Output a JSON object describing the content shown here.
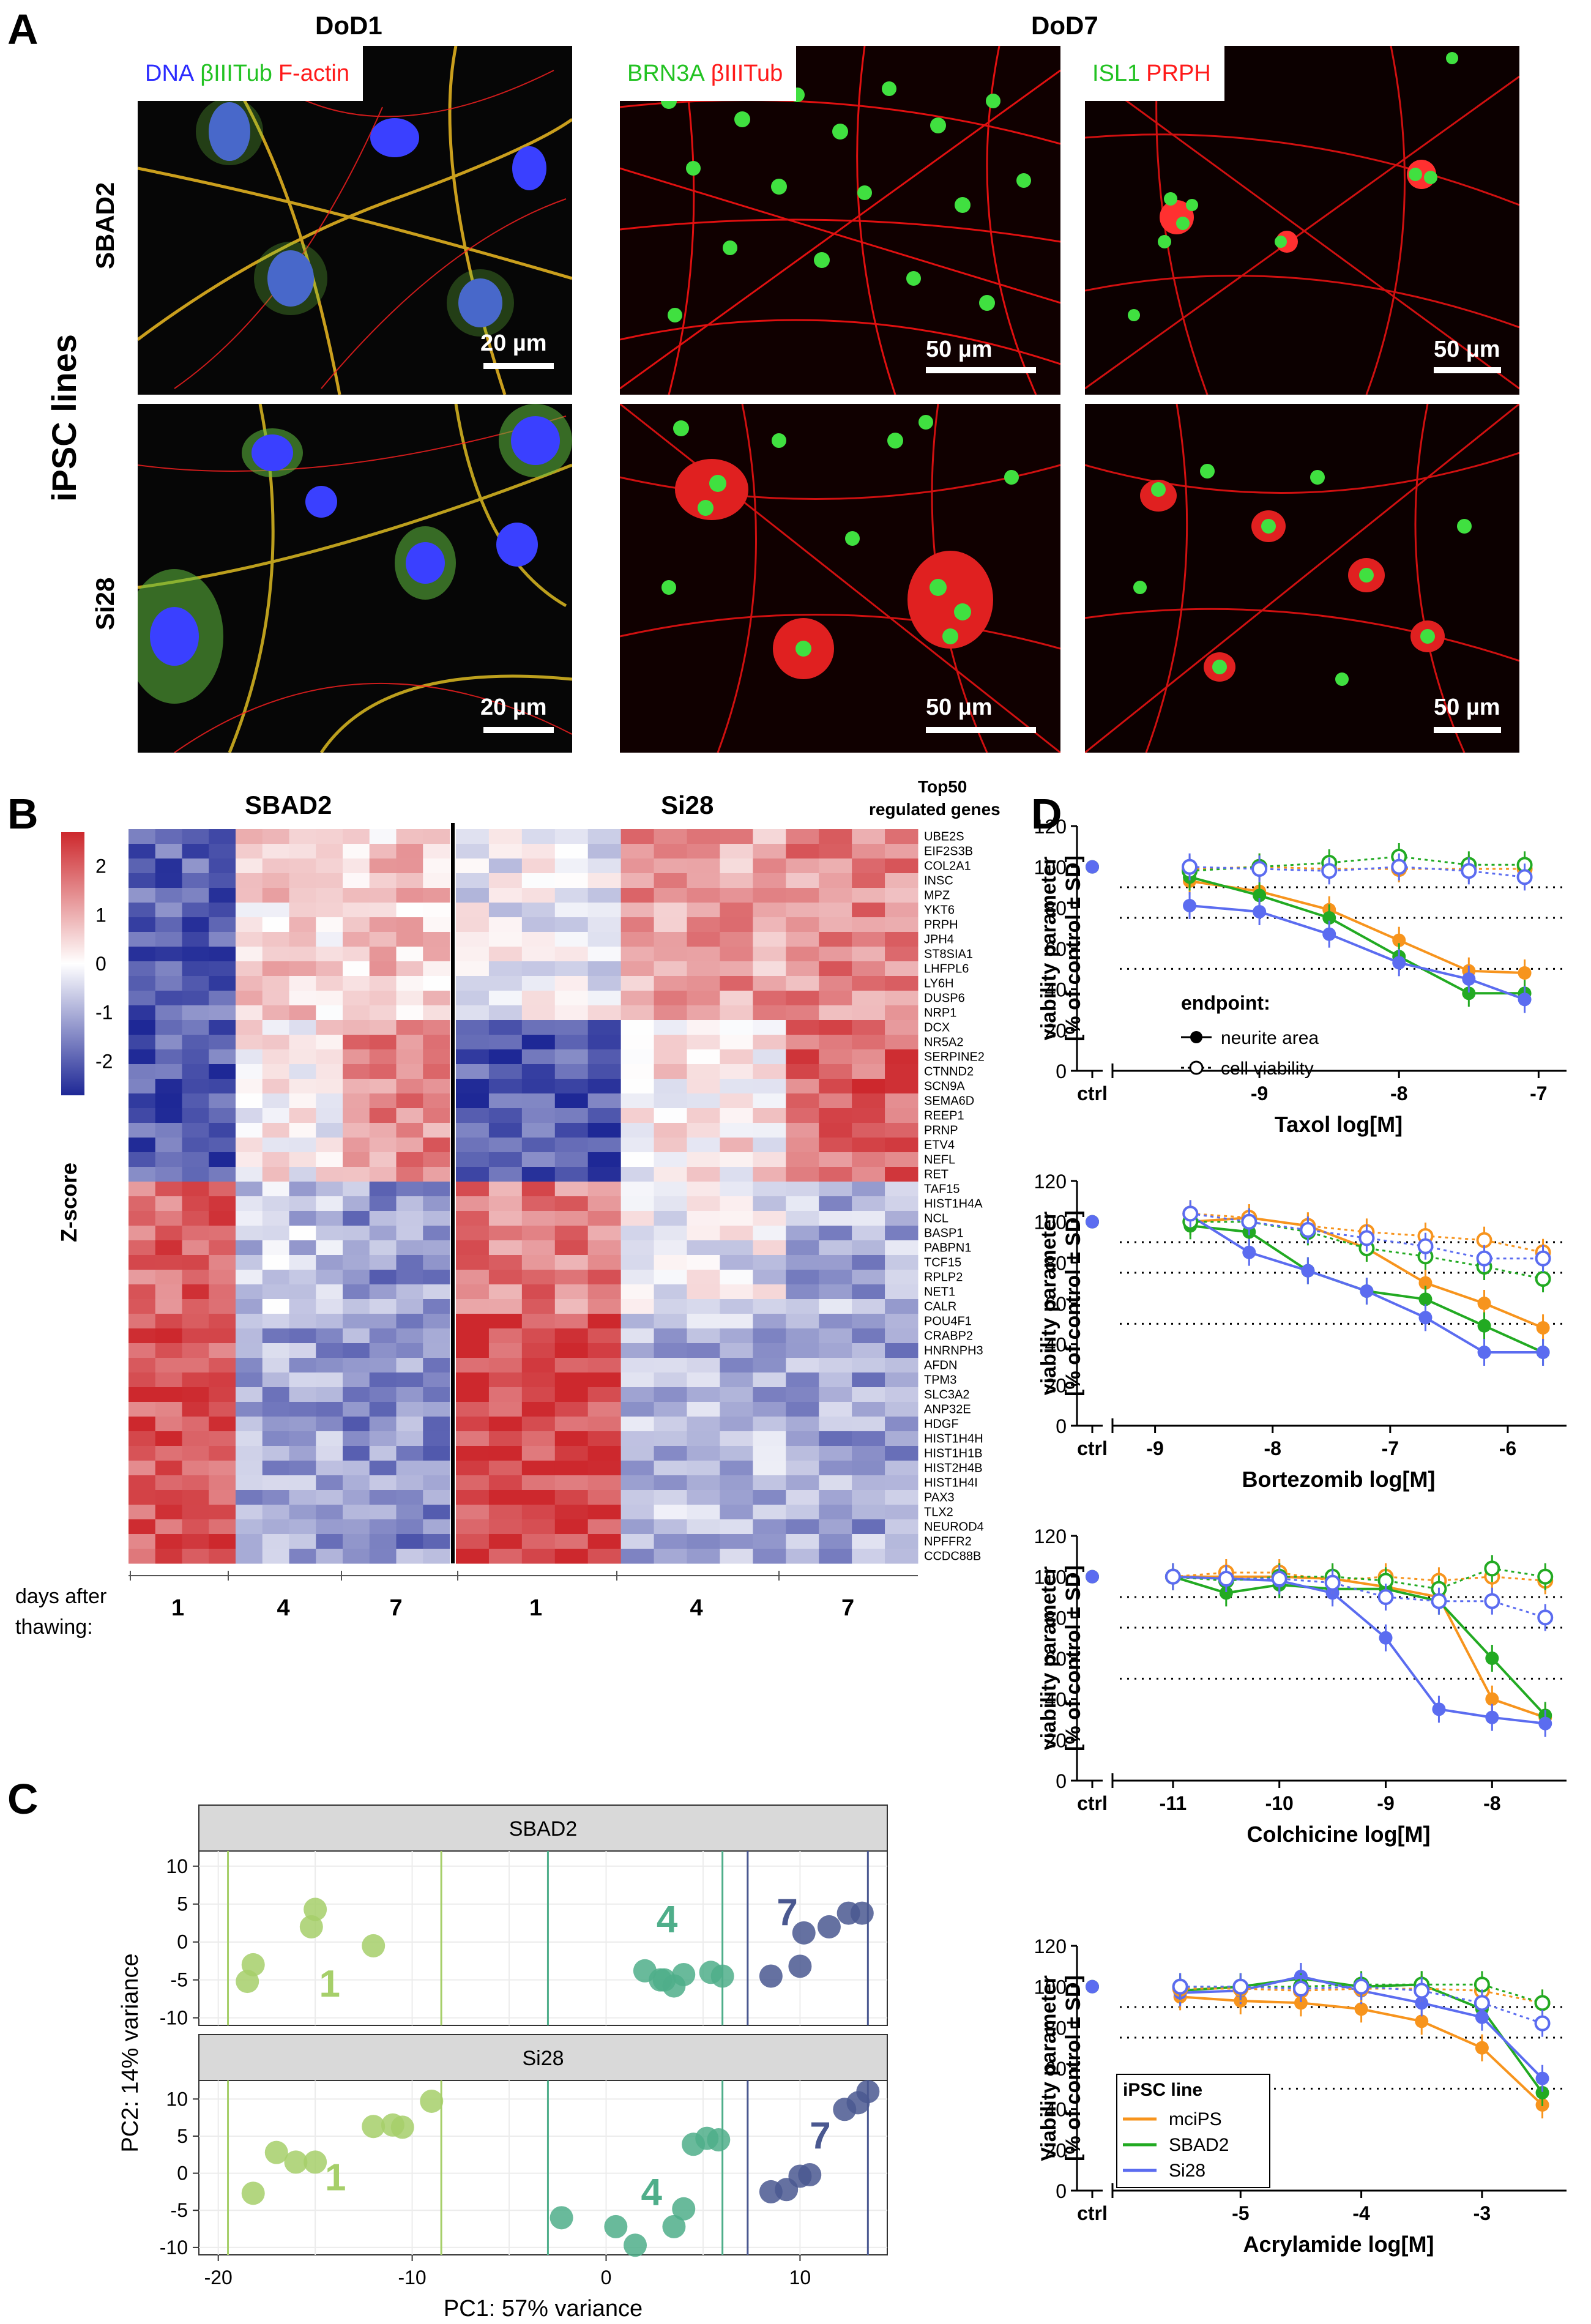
{
  "panelA": {
    "label": "A",
    "header_dod1": "DoD1",
    "header_dod7": "DoD7",
    "ylabel": "iPSC lines",
    "rows": [
      "SBAD2",
      "Si28"
    ],
    "stains": {
      "s1": [
        {
          "t": "DNA",
          "c": "#2b2bff"
        },
        {
          "t": "βIIITub",
          "c": "#22c222"
        },
        {
          "t": "F-actin",
          "c": "#ff1a1a"
        }
      ],
      "s2": [
        {
          "t": "BRN3A",
          "c": "#22c222"
        },
        {
          "t": "βIIITub",
          "c": "#ff1a1a"
        }
      ],
      "s3": [
        {
          "t": "ISL1",
          "c": "#22c222"
        },
        {
          "t": "PRPH",
          "c": "#ff1a1a"
        }
      ]
    },
    "scalebars": {
      "b20": "20 µm",
      "b50": "50 µm"
    }
  },
  "panelB": {
    "label": "B",
    "title_left": "SBAD2",
    "title_right": "Si28",
    "topgenes": "Top50\nregulated genes",
    "colorbar_label": "Z-score",
    "colorbar_ticks": [
      "2",
      "1",
      "0",
      "-1",
      "-2"
    ],
    "genes": [
      "UBE2S",
      "EIF2S3B",
      "COL2A1",
      "INSC",
      "MPZ",
      "YKT6",
      "PRPH",
      "JPH4",
      "ST8SIA1",
      "LHFPL6",
      "LY6H",
      "DUSP6",
      "NRP1",
      "DCX",
      "NR5A2",
      "SERPINE2",
      "CTNND2",
      "SCN9A",
      "SEMA6D",
      "REEP1",
      "PRNP",
      "ETV4",
      "NEFL",
      "RET",
      "TAF15",
      "HIST1H4A",
      "NCL",
      "BASP1",
      "PABPN1",
      "TCF15",
      "RPLP2",
      "NET1",
      "CALR",
      "POU4F1",
      "CRABP2",
      "HNRNPH3",
      "AFDN",
      "TPM3",
      "SLC3A2",
      "ANP32E",
      "HDGF",
      "HIST1H4H",
      "HIST1H1B",
      "HIST2H4B",
      "HIST1H4I",
      "PAX3",
      "TLX2",
      "NEUROD4",
      "NPFFR2",
      "CCDC88B"
    ],
    "days_label_1": "days after",
    "days_label_2": "thawing:",
    "days": [
      "1",
      "4",
      "7",
      "1",
      "4",
      "7"
    ]
  },
  "panelC": {
    "label": "C",
    "facets": [
      "SBAD2",
      "Si28"
    ],
    "xlabel": "PC1: 57% variance",
    "ylabel": "PC2: 14% variance",
    "xticks": [
      "-20",
      "-10",
      "0",
      "10"
    ],
    "yticks_top": [
      "10",
      "5",
      "0",
      "-5",
      "-10"
    ],
    "yticks_bottom": [
      "10",
      "5",
      "0",
      "-5",
      "-10"
    ],
    "groups": [
      "1",
      "4",
      "7"
    ]
  },
  "panelD": {
    "label": "D",
    "ylabel1": "viability parameter",
    "ylabel2": "[% of control ± SD]",
    "ylabel1_cap": "Viability parameter",
    "ctrl": "ctrl",
    "legend_endpoint": {
      "title": "endpoint:",
      "items": [
        "neurite area",
        "cell viability"
      ]
    },
    "legend_line": {
      "title": "iPSC line",
      "items": [
        "mciPS",
        "SBAD2",
        "Si28"
      ]
    },
    "colors": {
      "mciPS": "#f7941d",
      "SBAD2": "#22aa22",
      "Si28": "#5b6cf0"
    }
  },
  "chart_data": [
    {
      "type": "line",
      "title": "Taxol",
      "xlabel": "Taxol log[M]",
      "ylabel": "viability parameter [% of control ± SD]",
      "xticks": [
        "-9",
        "-8",
        "-7"
      ],
      "yticks": [
        "0",
        "20",
        "40",
        "60",
        "80",
        "100",
        "120"
      ],
      "ylim": [
        0,
        120
      ],
      "threshold_lines": [
        90,
        75,
        50
      ],
      "x": [
        -9.5,
        -9,
        -8.5,
        -8,
        -7.5,
        -7.1
      ],
      "series": [
        {
          "name": "mciPS neurite area",
          "values": [
            93,
            88,
            79,
            64,
            49,
            48
          ]
        },
        {
          "name": "SBAD2 neurite area",
          "values": [
            95,
            86,
            75,
            56,
            38,
            38
          ]
        },
        {
          "name": "Si28 neurite area",
          "values": [
            81,
            78,
            67,
            53,
            45,
            35
          ]
        },
        {
          "name": "mciPS cell viability",
          "values": [
            99,
            100,
            99,
            99,
            99,
            99
          ]
        },
        {
          "name": "SBAD2 cell viability",
          "values": [
            98,
            100,
            102,
            105,
            101,
            101
          ]
        },
        {
          "name": "Si28 cell viability",
          "values": [
            100,
            99,
            98,
            100,
            98,
            95
          ]
        }
      ]
    },
    {
      "type": "line",
      "title": "Bortezomib",
      "xlabel": "Bortezomib log[M]",
      "ylabel": "viability parameter [% of control ± SD]",
      "xticks": [
        "-9",
        "-8",
        "-7",
        "-6"
      ],
      "yticks": [
        "0",
        "20",
        "40",
        "60",
        "80",
        "100",
        "120"
      ],
      "ylim": [
        0,
        120
      ],
      "threshold_lines": [
        90,
        75,
        50
      ],
      "x": [
        -8.7,
        -8.2,
        -7.7,
        -7.2,
        -6.7,
        -6.2,
        -5.7
      ],
      "series": [
        {
          "name": "mciPS neurite area",
          "values": [
            100,
            102,
            98,
            87,
            70,
            60,
            48
          ]
        },
        {
          "name": "SBAD2 neurite area",
          "values": [
            98,
            95,
            76,
            66,
            62,
            49,
            36
          ]
        },
        {
          "name": "Si28 neurite area",
          "values": [
            103,
            85,
            76,
            66,
            53,
            36,
            36
          ]
        },
        {
          "name": "mciPS cell viability",
          "values": [
            104,
            102,
            98,
            95,
            93,
            91,
            85
          ]
        },
        {
          "name": "SBAD2 cell viability",
          "values": [
            100,
            100,
            95,
            87,
            83,
            78,
            72
          ]
        },
        {
          "name": "Si28 cell viability",
          "values": [
            104,
            100,
            96,
            92,
            88,
            82,
            82
          ]
        }
      ]
    },
    {
      "type": "line",
      "title": "Colchicine",
      "xlabel": "Colchicine log[M]",
      "ylabel": "viability parameter [% of control ± SD]",
      "xticks": [
        "-11",
        "-10",
        "-9",
        "-8"
      ],
      "yticks": [
        "0",
        "20",
        "40",
        "60",
        "80",
        "100",
        "120"
      ],
      "ylim": [
        0,
        120
      ],
      "threshold_lines": [
        90,
        75,
        50
      ],
      "x": [
        -11,
        -10.5,
        -10,
        -9.5,
        -9,
        -8.5,
        -8,
        -7.5
      ],
      "series": [
        {
          "name": "mciPS neurite area",
          "values": [
            100,
            100,
            100,
            99,
            95,
            90,
            40,
            31
          ]
        },
        {
          "name": "SBAD2 neurite area",
          "values": [
            100,
            92,
            96,
            94,
            94,
            88,
            60,
            32
          ]
        },
        {
          "name": "Si28 neurite area",
          "values": [
            100,
            99,
            98,
            92,
            70,
            35,
            31,
            28
          ]
        },
        {
          "name": "mciPS cell viability",
          "values": [
            100,
            102,
            102,
            98,
            100,
            98,
            100,
            98
          ]
        },
        {
          "name": "SBAD2 cell viability",
          "values": [
            100,
            98,
            100,
            100,
            98,
            94,
            104,
            100
          ]
        },
        {
          "name": "Si28 cell viability",
          "values": [
            100,
            99,
            99,
            97,
            90,
            88,
            88,
            80
          ]
        }
      ]
    },
    {
      "type": "line",
      "title": "Acrylamide",
      "xlabel": "Acrylamide log[M]",
      "ylabel": "Viability parameter [% of control ± SD]",
      "xticks": [
        "-5",
        "-4",
        "-3"
      ],
      "yticks": [
        "0",
        "20",
        "40",
        "60",
        "80",
        "100",
        "120"
      ],
      "ylim": [
        0,
        120
      ],
      "threshold_lines": [
        90,
        75,
        50
      ],
      "x": [
        -5.5,
        -5,
        -4.5,
        -4,
        -3.5,
        -3,
        -2.5
      ],
      "series": [
        {
          "name": "mciPS neurite area",
          "values": [
            95,
            93,
            92,
            89,
            83,
            70,
            42
          ]
        },
        {
          "name": "SBAD2 neurite area",
          "values": [
            98,
            100,
            104,
            100,
            101,
            89,
            48
          ]
        },
        {
          "name": "Si28 neurite area",
          "values": [
            97,
            98,
            105,
            98,
            92,
            85,
            55
          ]
        },
        {
          "name": "mciPS cell viability",
          "values": [
            99,
            99,
            98,
            99,
            99,
            98,
            92
          ]
        },
        {
          "name": "SBAD2 cell viability",
          "values": [
            100,
            100,
            100,
            101,
            101,
            101,
            92
          ]
        },
        {
          "name": "Si28 cell viability",
          "values": [
            100,
            100,
            99,
            100,
            98,
            92,
            82
          ]
        }
      ]
    }
  ]
}
